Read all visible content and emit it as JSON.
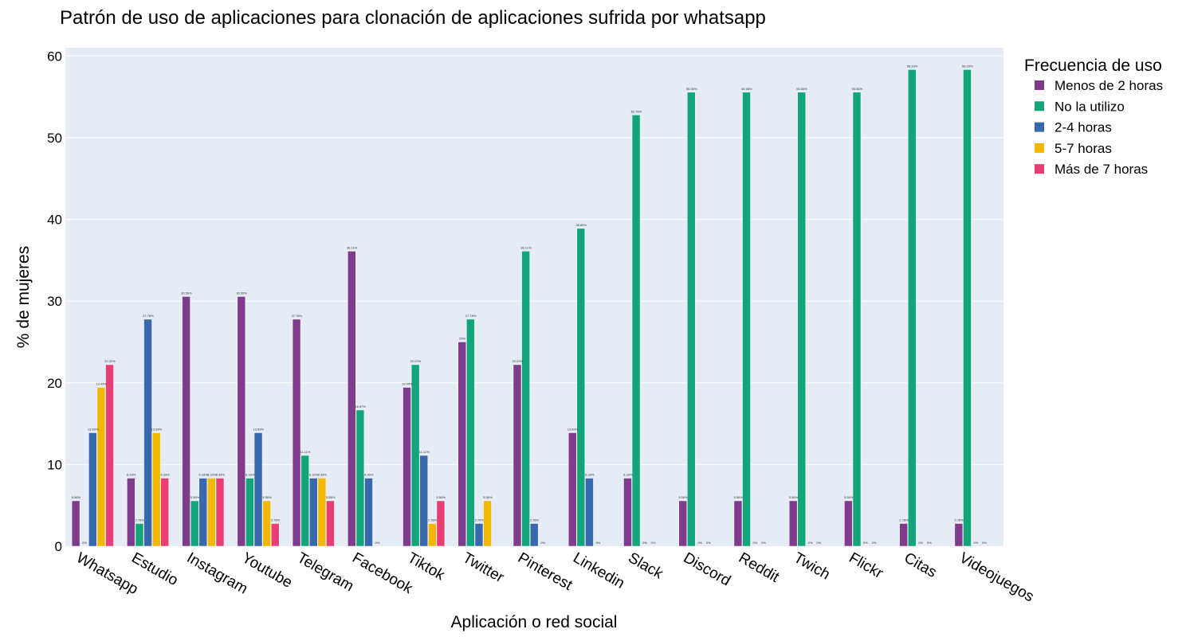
{
  "chart_data": {
    "type": "bar",
    "title": "Patrón de uso de aplicaciones para clonación de aplicaciones sufrida por whatsapp",
    "xlabel": "Aplicación o red social",
    "ylabel": "% de mujeres",
    "ylim": [
      0,
      61
    ],
    "yticks": [
      "0",
      "10",
      "20",
      "30",
      "40",
      "50",
      "60"
    ],
    "grid": true,
    "legend_title": "Frecuencia de uso",
    "legend_position": "top-right",
    "categories": [
      "Whatsapp",
      "Estudio",
      "Instagram",
      "Youtube",
      "Telegram",
      "Facebook",
      "Tiktok",
      "Twitter",
      "Pinterest",
      "Linkedin",
      "Slack",
      "Discord",
      "Reddit",
      "Twich",
      "Flickr",
      "Citas",
      "Videojuegos"
    ],
    "series": [
      {
        "name": "Menos de 2 horas",
        "color": "#7f3c8d",
        "values": [
          5.56,
          8.33,
          30.56,
          30.56,
          27.78,
          36.11,
          19.44,
          25,
          22.22,
          13.89,
          8.33,
          5.56,
          5.56,
          5.56,
          5.56,
          2.78,
          2.78
        ],
        "labels": [
          "5.56%",
          "8.33%",
          "30.56%",
          "30.56%",
          "27.78%",
          "36.11%",
          "19.44%",
          "25%",
          "22.22%",
          "13.89%",
          "8.33%",
          "5.56%",
          "5.56%",
          "5.56%",
          "5.56%",
          "2.78%",
          "2.78%"
        ]
      },
      {
        "name": "No la utilizo",
        "color": "#11a579",
        "values": [
          0,
          2.78,
          5.56,
          8.33,
          11.11,
          16.67,
          22.22,
          27.78,
          36.11,
          38.89,
          52.78,
          55.56,
          55.56,
          55.56,
          55.56,
          58.33,
          58.33
        ],
        "labels": [
          "0%",
          "2.78%",
          "5.56%",
          "8.33%",
          "11.11%",
          "16.67%",
          "22.22%",
          "27.78%",
          "36.11%",
          "38.89%",
          "52.78%",
          "55.56%",
          "55.56%",
          "55.56%",
          "55.56%",
          "58.33%",
          "58.33%"
        ]
      },
      {
        "name": "2-4 horas",
        "color": "#3969ac",
        "values": [
          13.89,
          27.78,
          8.33,
          13.89,
          8.33,
          8.33,
          11.11,
          2.78,
          2.78,
          8.33,
          0,
          0,
          0,
          0,
          0,
          0,
          0
        ],
        "labels": [
          "13.89%",
          "27.78%",
          "8.33%",
          "13.89%",
          "8.33%",
          "8.33%",
          "11.11%",
          "2.78%",
          "2.78%",
          "8.33%",
          "0%",
          "0%",
          "0%",
          "0%",
          "0%",
          "0%",
          "0%"
        ]
      },
      {
        "name": "5-7 horas",
        "color": "#f2b701",
        "values": [
          19.44,
          13.89,
          8.33,
          5.56,
          8.33,
          0,
          2.78,
          5.56,
          0,
          0,
          0,
          0,
          0,
          0,
          0,
          0,
          0
        ],
        "labels": [
          "19.44%",
          "13.89%",
          "8.33%",
          "5.56%",
          "8.33%",
          "0%",
          "2.78%",
          "5.56%",
          "0%",
          "0%",
          "0%",
          "0%",
          "0%",
          "0%",
          "0%",
          "0%",
          "0%"
        ]
      },
      {
        "name": "Más de 7 horas",
        "color": "#e73f74",
        "values": [
          22.22,
          8.33,
          8.33,
          2.78,
          5.56,
          null,
          5.56,
          null,
          null,
          null,
          null,
          null,
          null,
          null,
          null,
          null,
          null
        ],
        "labels": [
          "22.22%",
          "8.33%",
          "8.33%",
          "2.78%",
          "5.56%",
          "",
          "5.56%",
          "",
          "",
          "",
          "",
          "",
          "",
          "",
          "",
          "",
          ""
        ]
      }
    ]
  }
}
